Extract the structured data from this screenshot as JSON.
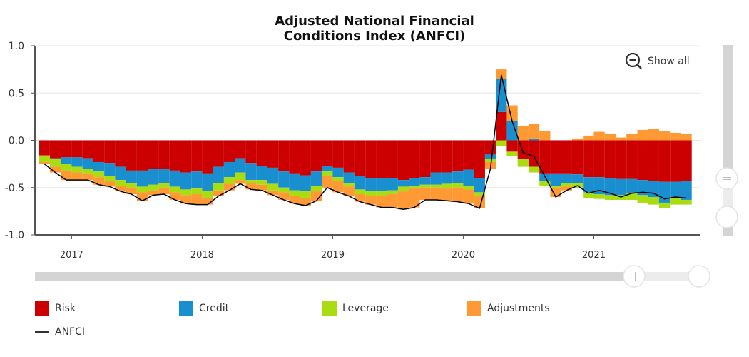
{
  "chart_data": {
    "type": "bar",
    "stacked": true,
    "title": "Adjusted National Financial Conditions Index (ANFCI)",
    "title_lines": [
      "Adjusted National Financial",
      "Conditions Index (ANFCI)"
    ],
    "ylim": [
      -1.0,
      1.0
    ],
    "yticks": [
      "1.0",
      "0.5",
      "0.0",
      "-0.5",
      "-1.0"
    ],
    "ytick_values": [
      1.0,
      0.5,
      0.0,
      -0.5,
      -1.0
    ],
    "xlim": [
      "2016-09",
      "2021-09"
    ],
    "xticks": [
      "2017",
      "2018",
      "2019",
      "2020",
      "2021"
    ],
    "grid": true,
    "legend_position": "bottom",
    "dates": [
      "2016-10",
      "2016-11",
      "2016-12",
      "2017-01",
      "2017-02",
      "2017-03",
      "2017-04",
      "2017-05",
      "2017-06",
      "2017-07",
      "2017-08",
      "2017-09",
      "2017-10",
      "2017-11",
      "2017-12",
      "2018-01",
      "2018-02",
      "2018-03",
      "2018-04",
      "2018-05",
      "2018-06",
      "2018-07",
      "2018-08",
      "2018-09",
      "2018-10",
      "2018-11",
      "2018-12",
      "2019-01",
      "2019-02",
      "2019-03",
      "2019-04",
      "2019-05",
      "2019-06",
      "2019-07",
      "2019-08",
      "2019-09",
      "2019-10",
      "2019-11",
      "2019-12",
      "2020-01",
      "2020-02",
      "2020-03",
      "2020-04",
      "2020-05",
      "2020-06",
      "2020-07",
      "2020-08",
      "2020-09",
      "2020-10",
      "2020-11",
      "2020-12",
      "2021-01",
      "2021-02",
      "2021-03",
      "2021-04",
      "2021-05",
      "2021-06",
      "2021-07",
      "2021-08",
      "2021-09"
    ],
    "series": [
      {
        "name": "Risk",
        "color": "#cc0000",
        "values": [
          -0.16,
          -0.19,
          -0.18,
          -0.18,
          -0.19,
          -0.23,
          -0.24,
          -0.28,
          -0.32,
          -0.32,
          -0.3,
          -0.3,
          -0.32,
          -0.34,
          -0.33,
          -0.35,
          -0.28,
          -0.23,
          -0.19,
          -0.24,
          -0.27,
          -0.29,
          -0.33,
          -0.35,
          -0.37,
          -0.33,
          -0.27,
          -0.29,
          -0.34,
          -0.38,
          -0.4,
          -0.4,
          -0.4,
          -0.42,
          -0.4,
          -0.39,
          -0.34,
          -0.34,
          -0.33,
          -0.31,
          -0.4,
          -0.15,
          0.3,
          -0.12,
          -0.2,
          -0.28,
          -0.35,
          -0.35,
          -0.35,
          -0.36,
          -0.39,
          -0.39,
          -0.4,
          -0.41,
          -0.41,
          -0.42,
          -0.43,
          -0.44,
          -0.44,
          -0.43
        ]
      },
      {
        "name": "Credit",
        "color": "#1a8fd0",
        "values": [
          0.0,
          -0.01,
          -0.07,
          -0.1,
          -0.11,
          -0.1,
          -0.14,
          -0.14,
          -0.13,
          -0.17,
          -0.17,
          -0.15,
          -0.17,
          -0.18,
          -0.18,
          -0.19,
          -0.17,
          -0.16,
          -0.15,
          -0.18,
          -0.15,
          -0.17,
          -0.17,
          -0.18,
          -0.17,
          -0.15,
          -0.06,
          -0.1,
          -0.11,
          -0.14,
          -0.14,
          -0.14,
          -0.13,
          -0.07,
          -0.08,
          -0.08,
          -0.13,
          -0.12,
          -0.12,
          -0.17,
          -0.15,
          -0.05,
          0.35,
          0.2,
          0.0,
          0.02,
          -0.08,
          -0.13,
          -0.1,
          -0.09,
          -0.16,
          -0.18,
          -0.18,
          -0.17,
          -0.15,
          -0.16,
          -0.17,
          -0.22,
          -0.16,
          -0.2
        ]
      },
      {
        "name": "Leverage",
        "color": "#aadd11",
        "values": [
          -0.07,
          -0.08,
          -0.07,
          -0.06,
          -0.05,
          -0.06,
          -0.05,
          -0.06,
          -0.05,
          -0.06,
          -0.06,
          -0.05,
          -0.06,
          -0.06,
          -0.06,
          -0.07,
          -0.08,
          -0.07,
          -0.08,
          -0.03,
          -0.05,
          -0.07,
          -0.05,
          -0.06,
          -0.07,
          -0.06,
          -0.05,
          -0.04,
          -0.04,
          -0.05,
          -0.05,
          -0.05,
          -0.04,
          -0.05,
          -0.03,
          -0.03,
          -0.03,
          -0.05,
          -0.05,
          -0.04,
          -0.04,
          -0.03,
          -0.06,
          -0.05,
          -0.08,
          -0.06,
          -0.05,
          -0.02,
          -0.04,
          -0.05,
          -0.06,
          -0.05,
          -0.05,
          -0.05,
          -0.07,
          -0.08,
          -0.08,
          -0.06,
          -0.08,
          -0.05
        ]
      },
      {
        "name": "Adjustments",
        "color": "#ff9933",
        "values": [
          -0.02,
          -0.06,
          -0.1,
          -0.08,
          -0.07,
          -0.08,
          -0.06,
          -0.06,
          -0.07,
          -0.09,
          -0.05,
          -0.07,
          -0.08,
          -0.09,
          -0.11,
          -0.07,
          -0.06,
          -0.07,
          -0.04,
          -0.07,
          -0.06,
          -0.05,
          -0.08,
          -0.08,
          -0.08,
          -0.1,
          -0.12,
          -0.12,
          -0.1,
          -0.08,
          -0.09,
          -0.12,
          -0.14,
          -0.19,
          -0.2,
          -0.13,
          -0.13,
          -0.13,
          -0.15,
          -0.15,
          -0.13,
          -0.07,
          0.1,
          0.17,
          0.15,
          0.15,
          0.1,
          -0.1,
          -0.04,
          0.02,
          0.05,
          0.09,
          0.07,
          0.03,
          0.07,
          0.11,
          0.12,
          0.1,
          0.08,
          0.07
        ]
      }
    ],
    "line": {
      "name": "ANFCI",
      "color": "#000000",
      "values": [
        -0.25,
        -0.34,
        -0.42,
        -0.42,
        -0.42,
        -0.47,
        -0.49,
        -0.54,
        -0.57,
        -0.64,
        -0.58,
        -0.57,
        -0.63,
        -0.67,
        -0.68,
        -0.68,
        -0.59,
        -0.53,
        -0.46,
        -0.52,
        -0.53,
        -0.58,
        -0.63,
        -0.67,
        -0.69,
        -0.64,
        -0.5,
        -0.55,
        -0.59,
        -0.65,
        -0.68,
        -0.71,
        -0.71,
        -0.73,
        -0.71,
        -0.63,
        -0.63,
        -0.64,
        -0.65,
        -0.67,
        -0.72,
        -0.3,
        0.69,
        0.2,
        -0.13,
        -0.17,
        -0.38,
        -0.6,
        -0.53,
        -0.48,
        -0.56,
        -0.53,
        -0.56,
        -0.6,
        -0.56,
        -0.55,
        -0.56,
        -0.62,
        -0.6,
        -0.61
      ]
    }
  },
  "controls": {
    "show_all_label": "Show all",
    "zoom_out_icon": "magnifier-minus-icon",
    "navigator_selection": [
      0.89,
      1.0
    ]
  }
}
